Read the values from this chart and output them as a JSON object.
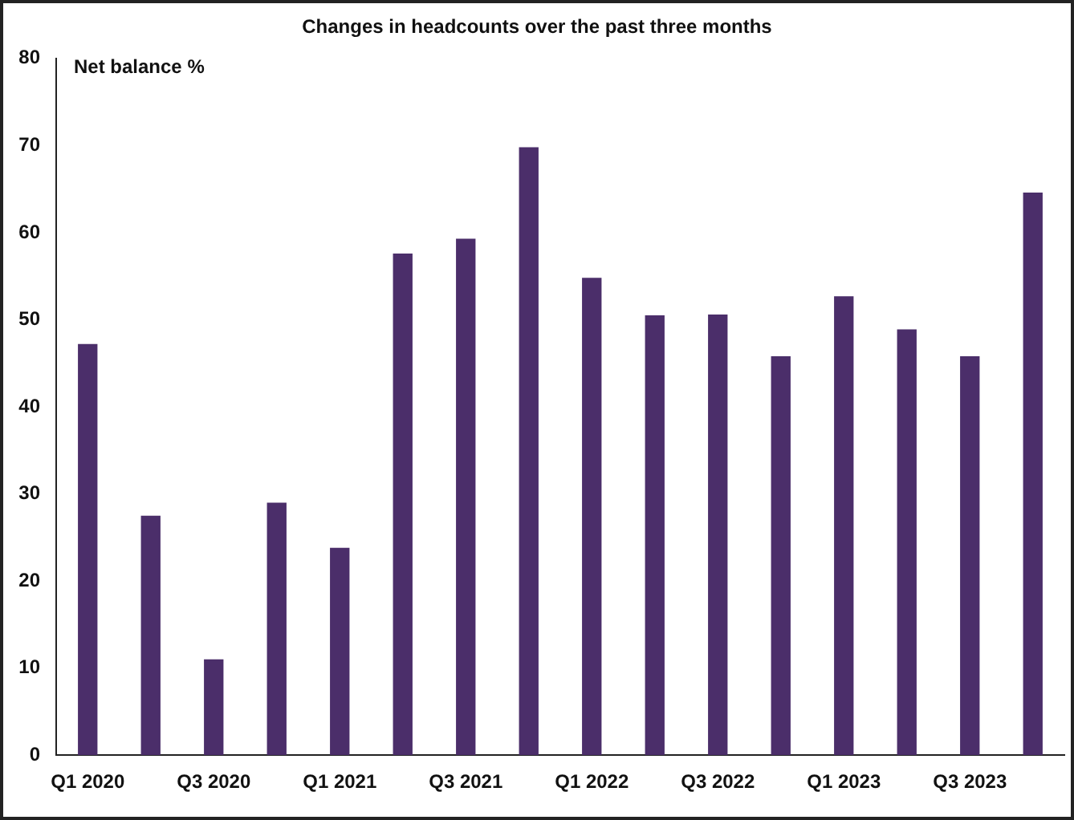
{
  "chart_data": {
    "type": "bar",
    "title": "Changes in headcounts over the past three months",
    "ylabel": "Net balance %",
    "categories": [
      "Q1 2020",
      null,
      "Q3 2020",
      null,
      "Q1 2021",
      null,
      "Q3 2021",
      null,
      "Q1 2022",
      null,
      "Q3 2022",
      null,
      "Q1 2023",
      null,
      "Q3 2023",
      null
    ],
    "values": [
      47.2,
      27.5,
      11,
      29,
      23.8,
      57.6,
      59.3,
      69.8,
      54.8,
      50.5,
      50.6,
      45.8,
      52.7,
      48.9,
      45.8,
      64.6
    ],
    "color": "#4b2e6a",
    "ylim": [
      0,
      80
    ],
    "yticks": [
      0,
      10,
      20,
      30,
      40,
      50,
      60,
      70,
      80
    ]
  }
}
